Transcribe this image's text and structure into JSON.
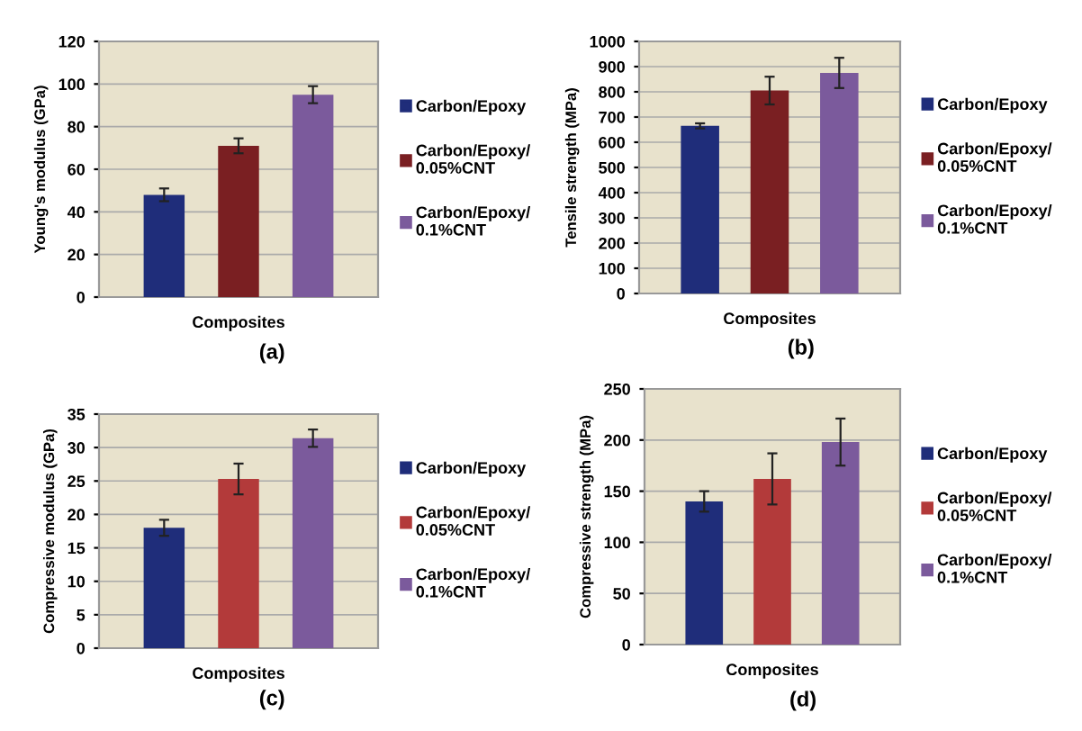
{
  "chart_data": [
    {
      "type": "bar",
      "ylabel": "Young's modulus (GPa)",
      "xlabel": "Composites",
      "categories": [
        null
      ],
      "ylim": [
        0,
        120
      ],
      "yticks": [
        0,
        20,
        40,
        60,
        80,
        100,
        120
      ],
      "grid": "y",
      "legend": "right",
      "annotations": [
        "(a)"
      ],
      "series": [
        {
          "name": "Carbon/Epoxy",
          "color": "#1f2d7a",
          "values": [
            48
          ],
          "errors": [
            3
          ]
        },
        {
          "name": "Carbon/Epoxy/\n0.05%CNT",
          "color": "#7a1f22",
          "values": [
            71
          ],
          "errors": [
            3.5
          ]
        },
        {
          "name": "Carbon/Epoxy/\n0.1%CNT",
          "color": "#7b5a9c",
          "values": [
            95
          ],
          "errors": [
            4
          ]
        }
      ]
    },
    {
      "type": "bar",
      "ylabel": "Tensile strength (MPa)",
      "xlabel": "Composites",
      "categories": [
        null
      ],
      "ylim": [
        0,
        1000
      ],
      "yticks": [
        0,
        100,
        200,
        300,
        400,
        500,
        600,
        700,
        800,
        900,
        1000
      ],
      "grid": "y",
      "legend": "right",
      "annotations": [
        "(b)"
      ],
      "series": [
        {
          "name": "Carbon/Epoxy",
          "color": "#1f2d7a",
          "values": [
            665
          ],
          "errors": [
            10
          ]
        },
        {
          "name": "Carbon/Epoxy/\n0.05%CNT",
          "color": "#7a1f22",
          "values": [
            805
          ],
          "errors": [
            55
          ]
        },
        {
          "name": "Carbon/Epoxy/\n0.1%CNT",
          "color": "#7b5a9c",
          "values": [
            875
          ],
          "errors": [
            60
          ]
        }
      ]
    },
    {
      "type": "bar",
      "ylabel": "Compressive modulus (GPa)",
      "xlabel": "Composites",
      "categories": [
        null
      ],
      "ylim": [
        0,
        35
      ],
      "yticks": [
        0,
        5,
        10,
        15,
        20,
        25,
        30,
        35
      ],
      "grid": "y",
      "legend": "right",
      "annotations": [
        "(c)"
      ],
      "series": [
        {
          "name": "Carbon/Epoxy",
          "color": "#1f2d7a",
          "values": [
            18
          ],
          "errors": [
            1.2
          ]
        },
        {
          "name": "Carbon/Epoxy/\n0.05%CNT",
          "color": "#b33a3a",
          "values": [
            25.3
          ],
          "errors": [
            2.3
          ]
        },
        {
          "name": "Carbon/Epoxy/\n0.1%CNT",
          "color": "#7b5a9c",
          "values": [
            31.4
          ],
          "errors": [
            1.3
          ]
        }
      ]
    },
    {
      "type": "bar",
      "ylabel": "Compressive strength (MPa)",
      "xlabel": "Composites",
      "categories": [
        null
      ],
      "ylim": [
        0,
        250
      ],
      "yticks": [
        0,
        50,
        100,
        150,
        200,
        250
      ],
      "grid": "y",
      "legend": "right",
      "annotations": [
        "(d)"
      ],
      "series": [
        {
          "name": "Carbon/Epoxy",
          "color": "#1f2d7a",
          "values": [
            140
          ],
          "errors": [
            10
          ]
        },
        {
          "name": "Carbon/Epoxy/\n0.05%CNT",
          "color": "#b33a3a",
          "values": [
            162
          ],
          "errors": [
            25
          ]
        },
        {
          "name": "Carbon/Epoxy/\n0.1%CNT",
          "color": "#7b5a9c",
          "values": [
            198
          ],
          "errors": [
            23
          ]
        }
      ]
    }
  ]
}
